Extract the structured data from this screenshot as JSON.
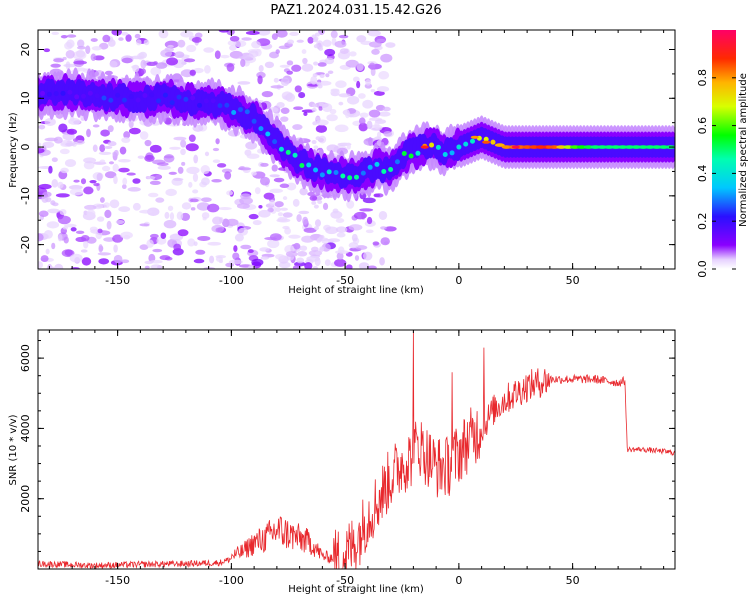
{
  "title": "PAZ1.2024.031.15.42.G26",
  "chart_data": [
    {
      "type": "heatmap",
      "xlabel": "Height of straight line (km)",
      "ylabel": "Frequency (Hz)",
      "xlim": [
        -185,
        95
      ],
      "ylim": [
        -25,
        24
      ],
      "xticks": [
        -150,
        -100,
        -50,
        0,
        50
      ],
      "yticks": [
        -20,
        -10,
        0,
        10,
        20
      ],
      "colorbar": {
        "label": "Normalized spectral amplitude",
        "range": [
          0,
          1
        ],
        "ticks": [
          0.0,
          0.2,
          0.4,
          0.6,
          0.8
        ],
        "colormap": "rainbow (purple to red)"
      },
      "ridge": {
        "x": [
          -185,
          -170,
          -150,
          -130,
          -110,
          -100,
          -90,
          -80,
          -70,
          -60,
          -50,
          -45,
          -40,
          -35,
          -30,
          -25,
          -20,
          -15,
          -10,
          -5,
          0,
          5,
          10,
          15,
          20,
          30,
          40,
          50,
          60,
          70,
          80,
          95
        ],
        "y": [
          11,
          11,
          10,
          10,
          9,
          8,
          6,
          1,
          -3,
          -5,
          -6,
          -6,
          -5,
          -4,
          -5,
          -2,
          -1,
          0,
          0,
          -1,
          0,
          1,
          2,
          1,
          0,
          0,
          0,
          0,
          0,
          0,
          0,
          0
        ],
        "amplitude": [
          0.2,
          0.2,
          0.25,
          0.25,
          0.25,
          0.3,
          0.35,
          0.45,
          0.5,
          0.45,
          0.45,
          0.5,
          0.45,
          0.5,
          0.45,
          0.5,
          0.5,
          0.75,
          0.6,
          0.5,
          0.55,
          0.6,
          0.65,
          0.75,
          0.8,
          0.85,
          0.9,
          0.6,
          0.5,
          0.5,
          0.5,
          0.5
        ]
      }
    },
    {
      "type": "line",
      "xlabel": "Height of straight line (km)",
      "ylabel": "SNR (10 * v/v)",
      "xlim": [
        -185,
        95
      ],
      "ylim": [
        0,
        6800
      ],
      "xticks": [
        -150,
        -100,
        -50,
        0,
        50
      ],
      "yticks": [
        2000,
        4000,
        6000
      ],
      "series": [
        {
          "color": "#e8282d",
          "x": [
            -185,
            -160,
            -140,
            -120,
            -105,
            -95,
            -90,
            -85,
            -80,
            -75,
            -70,
            -65,
            -60,
            -55,
            -50,
            -45,
            -40,
            -35,
            -30,
            -25,
            -20,
            -18,
            -15,
            -10,
            -5,
            0,
            5,
            10,
            15,
            20,
            30,
            40,
            50,
            60,
            70,
            73,
            74,
            80,
            90,
            95
          ],
          "y": [
            150,
            100,
            130,
            150,
            180,
            400,
            600,
            700,
            900,
            800,
            700,
            600,
            300,
            250,
            400,
            800,
            1500,
            2000,
            2600,
            3000,
            3200,
            3600,
            3300,
            2900,
            2900,
            3300,
            3700,
            4000,
            4500,
            4800,
            5200,
            5400,
            5400,
            5400,
            5300,
            5350,
            3400,
            3400,
            3350,
            3300
          ]
        }
      ],
      "spikes": [
        {
          "x": -20,
          "y": 6800
        },
        {
          "x": 11,
          "y": 6300
        },
        {
          "x": -3,
          "y": 5600
        }
      ]
    }
  ]
}
